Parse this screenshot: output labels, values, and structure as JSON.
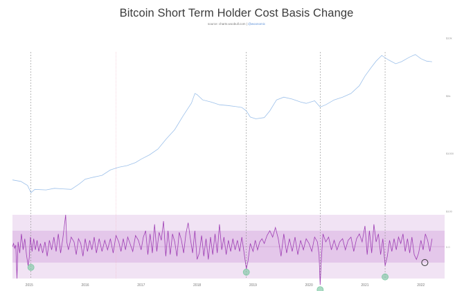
{
  "chart_data": {
    "type": "line",
    "title": "Bitcoin Short Term Holder Cost Basis Change",
    "subtitle": {
      "prefix": "source: charts.woobull.com | ",
      "handle": "@woonomic"
    },
    "xlabel": "",
    "ylabel": "",
    "x_ticks": [
      "2015",
      "2016",
      "2017",
      "2018",
      "2019",
      "2020",
      "2021",
      "2022"
    ],
    "y_ticks_price": [
      "$10k",
      "$5k",
      "$1000",
      "$100"
    ],
    "y_tick_oscillator": "0.0",
    "xlim": [
      2014.7,
      2022.3
    ],
    "series": [
      {
        "role": "price",
        "color": "#9cc0ea",
        "log_scale": true,
        "points": [
          [
            2014.7,
            350
          ],
          [
            2014.85,
            330
          ],
          [
            2014.97,
            280
          ],
          [
            2015.03,
            210
          ],
          [
            2015.1,
            240
          ],
          [
            2015.3,
            235
          ],
          [
            2015.45,
            250
          ],
          [
            2015.6,
            245
          ],
          [
            2015.75,
            240
          ],
          [
            2015.9,
            300
          ],
          [
            2016.0,
            360
          ],
          [
            2016.15,
            390
          ],
          [
            2016.3,
            420
          ],
          [
            2016.45,
            520
          ],
          [
            2016.6,
            580
          ],
          [
            2016.75,
            620
          ],
          [
            2016.9,
            700
          ],
          [
            2017.0,
            800
          ],
          [
            2017.15,
            950
          ],
          [
            2017.3,
            1200
          ],
          [
            2017.45,
            1800
          ],
          [
            2017.6,
            2600
          ],
          [
            2017.75,
            4500
          ],
          [
            2017.9,
            7500
          ],
          [
            2017.96,
            11000
          ],
          [
            2018.0,
            10500
          ],
          [
            2018.1,
            8500
          ],
          [
            2018.25,
            7800
          ],
          [
            2018.4,
            7000
          ],
          [
            2018.55,
            6800
          ],
          [
            2018.7,
            6500
          ],
          [
            2018.8,
            6300
          ],
          [
            2018.88,
            5500
          ],
          [
            2018.95,
            4300
          ],
          [
            2019.05,
            4000
          ],
          [
            2019.2,
            4200
          ],
          [
            2019.3,
            5500
          ],
          [
            2019.42,
            8500
          ],
          [
            2019.55,
            9500
          ],
          [
            2019.7,
            8800
          ],
          [
            2019.85,
            7800
          ],
          [
            2019.95,
            7400
          ],
          [
            2020.1,
            8200
          ],
          [
            2020.2,
            6400
          ],
          [
            2020.3,
            7000
          ],
          [
            2020.45,
            8500
          ],
          [
            2020.6,
            9500
          ],
          [
            2020.75,
            11000
          ],
          [
            2020.9,
            15000
          ],
          [
            2021.0,
            22000
          ],
          [
            2021.1,
            30000
          ],
          [
            2021.2,
            40000
          ],
          [
            2021.3,
            50000
          ],
          [
            2021.42,
            42000
          ],
          [
            2021.55,
            36000
          ],
          [
            2021.65,
            39000
          ],
          [
            2021.8,
            47000
          ],
          [
            2021.9,
            52000
          ],
          [
            2022.0,
            44000
          ],
          [
            2022.1,
            40000
          ],
          [
            2022.2,
            39000
          ]
        ]
      },
      {
        "role": "oscillator",
        "color": "#9d3cb3",
        "points": [
          [
            2014.7,
            0.0
          ],
          [
            2014.72,
            0.02
          ],
          [
            2014.74,
            -0.01
          ],
          [
            2014.76,
            0.01
          ],
          [
            2014.78,
            -0.2
          ],
          [
            2014.8,
            0.03
          ],
          [
            2014.83,
            -0.04
          ],
          [
            2014.86,
            0.08
          ],
          [
            2014.89,
            -0.02
          ],
          [
            2014.92,
            0.05
          ],
          [
            2014.95,
            -0.05
          ],
          [
            2014.98,
            -0.12
          ],
          [
            2015.0,
            -0.07
          ],
          [
            2015.02,
            0.06
          ],
          [
            2015.05,
            -0.03
          ],
          [
            2015.08,
            0.05
          ],
          [
            2015.11,
            -0.02
          ],
          [
            2015.14,
            0.04
          ],
          [
            2015.17,
            -0.03
          ],
          [
            2015.2,
            0.02
          ],
          [
            2015.24,
            -0.04
          ],
          [
            2015.28,
            0.03
          ],
          [
            2015.32,
            -0.06
          ],
          [
            2015.36,
            0.04
          ],
          [
            2015.4,
            -0.02
          ],
          [
            2015.44,
            0.06
          ],
          [
            2015.48,
            -0.03
          ],
          [
            2015.52,
            0.08
          ],
          [
            2015.56,
            -0.04
          ],
          [
            2015.6,
            0.05
          ],
          [
            2015.65,
            0.2
          ],
          [
            2015.67,
            0.03
          ],
          [
            2015.7,
            -0.02
          ],
          [
            2015.75,
            0.06
          ],
          [
            2015.8,
            0.03
          ],
          [
            2015.84,
            -0.05
          ],
          [
            2015.88,
            0.05
          ],
          [
            2015.92,
            0.02
          ],
          [
            2015.96,
            -0.06
          ],
          [
            2016.0,
            0.05
          ],
          [
            2016.04,
            -0.03
          ],
          [
            2016.08,
            0.04
          ],
          [
            2016.12,
            -0.02
          ],
          [
            2016.16,
            0.06
          ],
          [
            2016.2,
            -0.04
          ],
          [
            2016.25,
            0.05
          ],
          [
            2016.3,
            -0.03
          ],
          [
            2016.35,
            0.04
          ],
          [
            2016.4,
            -0.02
          ],
          [
            2016.45,
            0.05
          ],
          [
            2016.5,
            -0.04
          ],
          [
            2016.55,
            0.07
          ],
          [
            2016.6,
            0.03
          ],
          [
            2016.64,
            -0.03
          ],
          [
            2016.68,
            0.05
          ],
          [
            2016.72,
            -0.02
          ],
          [
            2016.76,
            0.06
          ],
          [
            2016.8,
            0.02
          ],
          [
            2016.85,
            -0.03
          ],
          [
            2016.9,
            0.07
          ],
          [
            2016.95,
            0.04
          ],
          [
            2017.0,
            -0.02
          ],
          [
            2017.04,
            0.06
          ],
          [
            2017.08,
            0.1
          ],
          [
            2017.12,
            -0.05
          ],
          [
            2017.16,
            0.08
          ],
          [
            2017.2,
            -0.04
          ],
          [
            2017.24,
            0.14
          ],
          [
            2017.28,
            -0.03
          ],
          [
            2017.32,
            0.09
          ],
          [
            2017.36,
            0.04
          ],
          [
            2017.4,
            0.16
          ],
          [
            2017.44,
            -0.06
          ],
          [
            2017.48,
            0.1
          ],
          [
            2017.52,
            -0.05
          ],
          [
            2017.56,
            0.08
          ],
          [
            2017.6,
            0.03
          ],
          [
            2017.64,
            -0.06
          ],
          [
            2017.68,
            0.09
          ],
          [
            2017.72,
            0.04
          ],
          [
            2017.76,
            -0.04
          ],
          [
            2017.8,
            0.08
          ],
          [
            2017.84,
            0.15
          ],
          [
            2017.88,
            0.05
          ],
          [
            2017.92,
            -0.04
          ],
          [
            2017.96,
            0.1
          ],
          [
            2018.0,
            -0.08
          ],
          [
            2018.04,
            -0.04
          ],
          [
            2018.08,
            0.07
          ],
          [
            2018.12,
            -0.06
          ],
          [
            2018.16,
            0.05
          ],
          [
            2018.2,
            -0.08
          ],
          [
            2018.24,
            0.06
          ],
          [
            2018.28,
            -0.05
          ],
          [
            2018.32,
            0.08
          ],
          [
            2018.36,
            -0.04
          ],
          [
            2018.4,
            0.14
          ],
          [
            2018.44,
            -0.02
          ],
          [
            2018.48,
            0.06
          ],
          [
            2018.52,
            -0.05
          ],
          [
            2018.56,
            0.04
          ],
          [
            2018.6,
            -0.03
          ],
          [
            2018.64,
            0.05
          ],
          [
            2018.68,
            -0.02
          ],
          [
            2018.72,
            0.04
          ],
          [
            2018.76,
            -0.03
          ],
          [
            2018.8,
            0.06
          ],
          [
            2018.84,
            -0.04
          ],
          [
            2018.88,
            -0.14
          ],
          [
            2018.91,
            -0.09
          ],
          [
            2018.95,
            0.02
          ],
          [
            2019.0,
            -0.03
          ],
          [
            2019.04,
            0.04
          ],
          [
            2019.08,
            -0.02
          ],
          [
            2019.12,
            0.03
          ],
          [
            2019.16,
            0.05
          ],
          [
            2019.2,
            0.02
          ],
          [
            2019.25,
            0.07
          ],
          [
            2019.3,
            0.1
          ],
          [
            2019.35,
            0.06
          ],
          [
            2019.4,
            0.12
          ],
          [
            2019.45,
            0.05
          ],
          [
            2019.5,
            -0.06
          ],
          [
            2019.55,
            0.08
          ],
          [
            2019.6,
            -0.04
          ],
          [
            2019.65,
            0.05
          ],
          [
            2019.7,
            -0.03
          ],
          [
            2019.75,
            0.06
          ],
          [
            2019.8,
            -0.05
          ],
          [
            2019.85,
            0.04
          ],
          [
            2019.9,
            -0.02
          ],
          [
            2019.95,
            0.05
          ],
          [
            2020.0,
            0.02
          ],
          [
            2020.05,
            -0.03
          ],
          [
            2020.1,
            0.06
          ],
          [
            2020.15,
            0.03
          ],
          [
            2020.18,
            -0.05
          ],
          [
            2020.2,
            -0.24
          ],
          [
            2020.22,
            -0.08
          ],
          [
            2020.25,
            0.08
          ],
          [
            2020.3,
            0.03
          ],
          [
            2020.35,
            0.06
          ],
          [
            2020.4,
            -0.02
          ],
          [
            2020.45,
            0.04
          ],
          [
            2020.5,
            -0.02
          ],
          [
            2020.55,
            0.03
          ],
          [
            2020.6,
            0.05
          ],
          [
            2020.65,
            -0.02
          ],
          [
            2020.7,
            0.04
          ],
          [
            2020.75,
            0.06
          ],
          [
            2020.8,
            -0.03
          ],
          [
            2020.85,
            0.05
          ],
          [
            2020.9,
            0.08
          ],
          [
            2020.95,
            0.03
          ],
          [
            2021.0,
            0.13
          ],
          [
            2021.04,
            -0.05
          ],
          [
            2021.08,
            0.1
          ],
          [
            2021.12,
            -0.04
          ],
          [
            2021.16,
            0.14
          ],
          [
            2021.2,
            0.03
          ],
          [
            2021.24,
            0.08
          ],
          [
            2021.28,
            -0.05
          ],
          [
            2021.32,
            0.05
          ],
          [
            2021.36,
            -0.12
          ],
          [
            2021.4,
            -0.06
          ],
          [
            2021.44,
            0.04
          ],
          [
            2021.48,
            -0.03
          ],
          [
            2021.52,
            0.05
          ],
          [
            2021.56,
            -0.02
          ],
          [
            2021.6,
            0.06
          ],
          [
            2021.64,
            0.02
          ],
          [
            2021.68,
            0.08
          ],
          [
            2021.72,
            -0.03
          ],
          [
            2021.76,
            0.05
          ],
          [
            2021.8,
            -0.04
          ],
          [
            2021.84,
            0.06
          ],
          [
            2021.88,
            -0.05
          ],
          [
            2021.92,
            -0.08
          ],
          [
            2021.96,
            -0.04
          ],
          [
            2022.0,
            0.04
          ],
          [
            2022.04,
            -0.02
          ],
          [
            2022.08,
            0.08
          ],
          [
            2022.12,
            0.04
          ],
          [
            2022.16,
            -0.03
          ],
          [
            2022.2,
            0.05
          ]
        ]
      }
    ],
    "bands": {
      "outer": [
        -0.2,
        0.2
      ],
      "inner": [
        -0.1,
        0.1
      ],
      "outer_color": "#f1e3f4",
      "inner_color": "#e4c7ea"
    },
    "vertical_markers": [
      2015.03,
      2016.55,
      2018.88,
      2020.2,
      2021.36
    ],
    "highlight_points": [
      {
        "x": 2015.03,
        "y": -0.13,
        "color": "#7fc8a4"
      },
      {
        "x": 2018.88,
        "y": -0.16,
        "color": "#7fc8a4"
      },
      {
        "x": 2020.2,
        "y": -0.27,
        "color": "#7fc8a4"
      },
      {
        "x": 2021.36,
        "y": -0.19,
        "color": "#7fc8a4"
      },
      {
        "x": 2022.07,
        "y": -0.1,
        "color": "#333333"
      }
    ]
  }
}
